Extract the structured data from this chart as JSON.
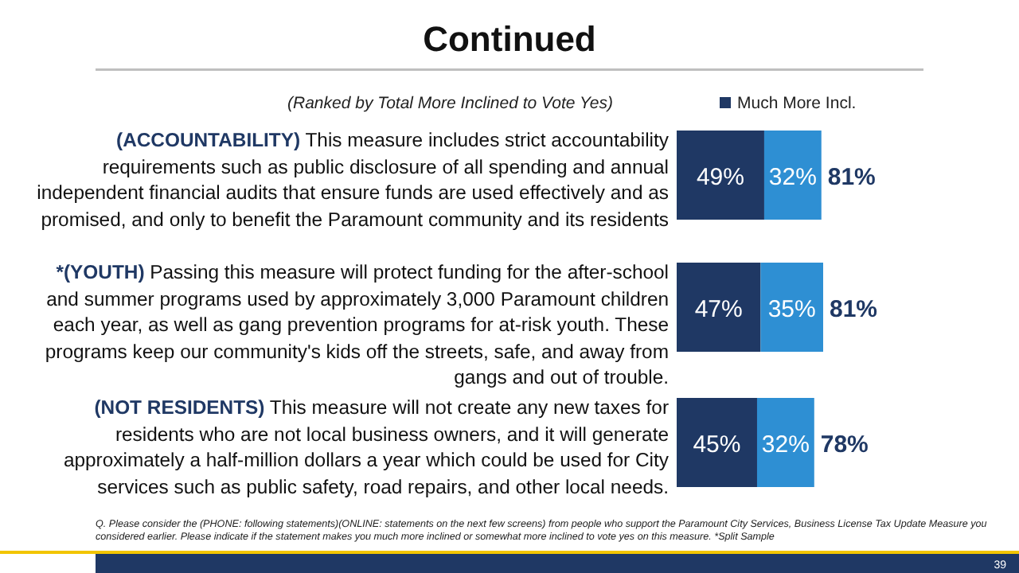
{
  "chart_data": {
    "type": "bar",
    "orientation": "horizontal",
    "stacked": true,
    "title": "Continued",
    "subtitle": "(Ranked by Total More Inclined to Vote Yes)",
    "categories": [
      "(ACCOUNTABILITY) This measure includes strict accountability requirements such as public disclosure of all spending and annual independent financial audits that ensure funds are used effectively and as promised, and only to benefit the Paramount community and its residents",
      "*(YOUTH) Passing this measure will protect funding for the after-school and summer programs used by approximately 3,000 Paramount children each year, as well as gang prevention programs for at-risk youth.  These programs keep our community's kids off the streets, safe, and away from gangs and out of trouble.",
      "(NOT RESIDENTS) This measure will not create any new taxes for residents who are not local business owners, and it will generate approximately a half-million dollars a year which could be used for City services such as public safety, road repairs, and other local needs."
    ],
    "series": [
      {
        "name": "Much More Incl.",
        "color": "#1f3864",
        "values": [
          49,
          47,
          45
        ],
        "value_labels": [
          "49%",
          "47%",
          "45%"
        ]
      },
      {
        "color": "#2e8fd3",
        "values": [
          32,
          35,
          32
        ],
        "value_labels": [
          "32%",
          "35%",
          "32%"
        ]
      }
    ],
    "totals": [
      "81%",
      "81%",
      "78%"
    ],
    "legend": "top right",
    "annotations": [
      "Q. Please consider the (PHONE: following statements)(ONLINE: statements on the next few screens) from people who support the Paramount City Services, Business License Tax Update Measure you considered earlier.  Please indicate if the statement makes you much more inclined or somewhat more inclined to vote yes on this measure. *Split Sample",
      "39"
    ]
  }
}
